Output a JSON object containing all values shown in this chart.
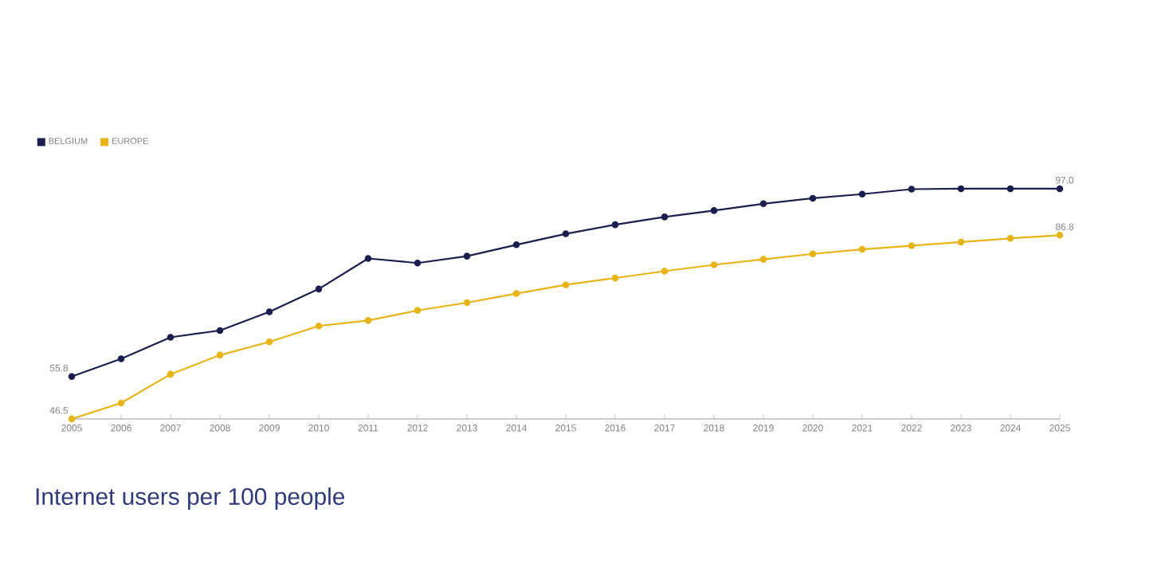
{
  "chart_data": {
    "type": "line",
    "title": "Internet users per 100 people",
    "categories": [
      "2005",
      "2006",
      "2007",
      "2008",
      "2009",
      "2010",
      "2011",
      "2012",
      "2013",
      "2014",
      "2015",
      "2016",
      "2017",
      "2018",
      "2019",
      "2020",
      "2021",
      "2022",
      "2023",
      "2024",
      "2025"
    ],
    "series": [
      {
        "name": "BELGIUM",
        "color": "#1b1f4f",
        "values": [
          55.8,
          59.7,
          64.4,
          65.9,
          70.0,
          75.0,
          81.7,
          80.7,
          82.2,
          84.7,
          87.1,
          89.1,
          90.8,
          92.2,
          93.7,
          94.9,
          95.8,
          96.9,
          97.0,
          97.0,
          97.0
        ],
        "value_labels": [
          "55.8",
          null,
          null,
          null,
          null,
          null,
          null,
          null,
          null,
          null,
          null,
          null,
          null,
          null,
          null,
          null,
          null,
          null,
          null,
          null,
          "97.0"
        ]
      },
      {
        "name": "EUROPE",
        "color": "#e6b416",
        "values": [
          46.5,
          50.0,
          56.3,
          60.5,
          63.4,
          66.9,
          68.1,
          70.3,
          72.0,
          74.0,
          75.9,
          77.4,
          78.9,
          80.3,
          81.5,
          82.7,
          83.7,
          84.5,
          85.3,
          86.1,
          86.8
        ],
        "value_labels": [
          "46.5",
          null,
          null,
          null,
          null,
          null,
          null,
          null,
          null,
          null,
          null,
          null,
          null,
          null,
          null,
          null,
          null,
          null,
          null,
          null,
          "86.8"
        ]
      }
    ],
    "marker": "circle",
    "line_style": "solid",
    "legend": "top left",
    "tick_labels": "x"
  }
}
